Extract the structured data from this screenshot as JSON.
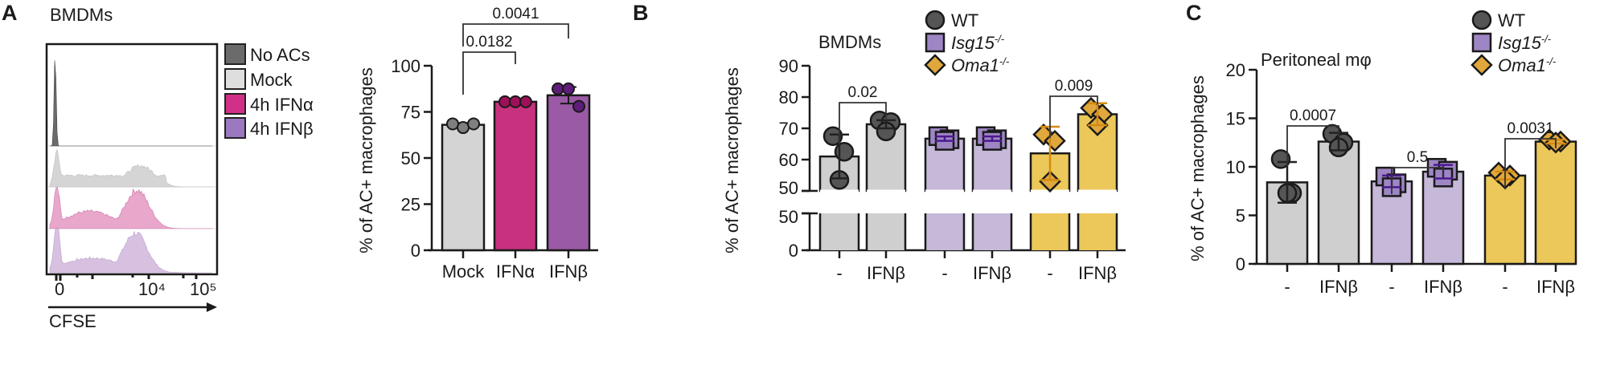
{
  "figure": {
    "panels": [
      "A",
      "B",
      "C"
    ]
  },
  "chart_data": [
    {
      "id": "A-histogram",
      "type": "area",
      "panel_letter": "A",
      "title": "BMDMs",
      "xlabel": "CFSE",
      "x_ticks": [
        "0",
        "10⁴",
        "10⁵"
      ],
      "legend": [
        {
          "label": "No ACs",
          "color": "#6b6b6b"
        },
        {
          "label": "Mock",
          "color": "#dedede"
        },
        {
          "label": "4h IFNα",
          "color": "#d12f88"
        },
        {
          "label": "4h IFNβ",
          "color": "#9b78bf"
        }
      ],
      "series": [
        {
          "name": "No ACs",
          "color": "#6b6b6b",
          "shape": "single narrow peak near 0"
        },
        {
          "name": "Mock",
          "color": "#d3d3d3",
          "shape": "peak near 0 and broad peak near 10^4"
        },
        {
          "name": "4h IFNα",
          "color": "#e7a3c9",
          "shape": "peak near 0 and peak near 10^4"
        },
        {
          "name": "4h IFNβ",
          "color": "#d6bde0",
          "shape": "peak near 0 and peak near 10^4"
        }
      ],
      "legend_position": "right"
    },
    {
      "id": "A-bar",
      "type": "bar",
      "ylabel": "% of AC+ macrophages",
      "ylim": [
        0,
        100
      ],
      "yticks": [
        "0",
        "25",
        "50",
        "75",
        "100"
      ],
      "categories": [
        "Mock",
        "IFNα",
        "IFNβ"
      ],
      "values": [
        68,
        80.5,
        84
      ],
      "errors": [
        1,
        0.5,
        4.5
      ],
      "colors": [
        "#d4d4d4",
        "#c8317d",
        "#9b5aa5"
      ],
      "point_colors": [
        "#7f7f7f",
        "#9e0f5a",
        "#5e1d79"
      ],
      "points": [
        [
          68.5,
          66.5,
          68.5
        ],
        [
          80.5,
          80.5,
          80.5
        ],
        [
          87.5,
          87.5,
          78
        ]
      ],
      "comparisons": [
        {
          "from": 0,
          "to": 1,
          "label": "0.0182"
        },
        {
          "from": 0,
          "to": 2,
          "label": "0.0041"
        }
      ]
    },
    {
      "id": "B-bar",
      "type": "bar",
      "panel_letter": "B",
      "title": "BMDMs",
      "ylabel": "% of AC+ macrophages",
      "ylim_upper": [
        50,
        90
      ],
      "ylim_lower": [
        0,
        50
      ],
      "yticks_upper": [
        "50",
        "60",
        "70",
        "80",
        "90"
      ],
      "yticks_lower": [
        "0",
        "50"
      ],
      "categories": [
        "-",
        "IFNβ",
        "-",
        "IFNβ",
        "-",
        "IFNβ"
      ],
      "groups": [
        "WT",
        "WT",
        "Isg15-/-",
        "Isg15-/-",
        "Oma1-/-",
        "Oma1-/-"
      ],
      "values": [
        61,
        71.3,
        66.7,
        66.7,
        62,
        74.5
      ],
      "errors": [
        7,
        1.3,
        0.7,
        0.7,
        8.5,
        3.5
      ],
      "points": [
        [
          67.5,
          62.5,
          53.5
        ],
        [
          72.5,
          72,
          69
        ],
        [
          67.5,
          66.5,
          66
        ],
        [
          67.5,
          66.5,
          66
        ],
        [
          68,
          66,
          53
        ],
        [
          76.5,
          74.5,
          71
        ]
      ],
      "legend": [
        {
          "label": "WT",
          "marker": "circle",
          "color": "#555555"
        },
        {
          "label": "Isg15",
          "sup": "-/-",
          "marker": "square",
          "color": "#9e86c4"
        },
        {
          "label": "Oma1",
          "sup": "-/-",
          "marker": "diamond",
          "color": "#e0a83c"
        }
      ],
      "legend_position": "top-right",
      "comparisons": [
        {
          "from": 0,
          "to": 1,
          "label": "0.02"
        },
        {
          "from": 4,
          "to": 5,
          "label": "0.009"
        }
      ]
    },
    {
      "id": "C-bar",
      "type": "bar",
      "panel_letter": "C",
      "title": "Peritoneal mφ",
      "ylabel": "% of AC+ macrophages",
      "ylim": [
        0,
        20
      ],
      "yticks": [
        "0",
        "5",
        "10",
        "15",
        "20"
      ],
      "categories": [
        "-",
        "IFNβ",
        "-",
        "IFNβ",
        "-",
        "IFNβ"
      ],
      "groups": [
        "WT",
        "WT",
        "Isg15-/-",
        "Isg15-/-",
        "Oma1-/-",
        "Oma1-/-"
      ],
      "values": [
        8.4,
        12.6,
        8.5,
        9.5,
        9.1,
        12.6
      ],
      "errors": [
        2.1,
        0.9,
        0.6,
        0.7,
        0.4,
        0.2
      ],
      "points": [
        [
          10.8,
          7.3,
          7.3
        ],
        [
          13.4,
          12.5,
          12.0
        ],
        [
          9.0,
          8.3,
          7.9
        ],
        [
          9.9,
          9.6,
          8.9
        ],
        [
          9.4,
          9.1,
          8.8
        ],
        [
          12.8,
          12.6,
          12.5
        ]
      ],
      "legend": [
        {
          "label": "WT",
          "marker": "circle",
          "color": "#555555"
        },
        {
          "label": "Isg15",
          "sup": "-/-",
          "marker": "square",
          "color": "#9e86c4"
        },
        {
          "label": "Oma1",
          "sup": "-/-",
          "marker": "diamond",
          "color": "#e0a83c"
        }
      ],
      "legend_position": "top-right",
      "comparisons": [
        {
          "from": 0,
          "to": 1,
          "label": "0.0007"
        },
        {
          "from": 2,
          "to": 3,
          "label": "0.5"
        },
        {
          "from": 4,
          "to": 5,
          "label": "0.0031"
        }
      ]
    }
  ],
  "group_colors": {
    "WT": {
      "bar": "#cfcfcf",
      "point": "#555555",
      "err": "#222222"
    },
    "Isg15-/-": {
      "bar": "#c6b8d8",
      "point": "#9e86c4",
      "err": "#4b1a8f"
    },
    "Oma1-/-": {
      "bar": "#ecc75a",
      "point": "#e0a83c",
      "err": "#d58a12"
    }
  }
}
